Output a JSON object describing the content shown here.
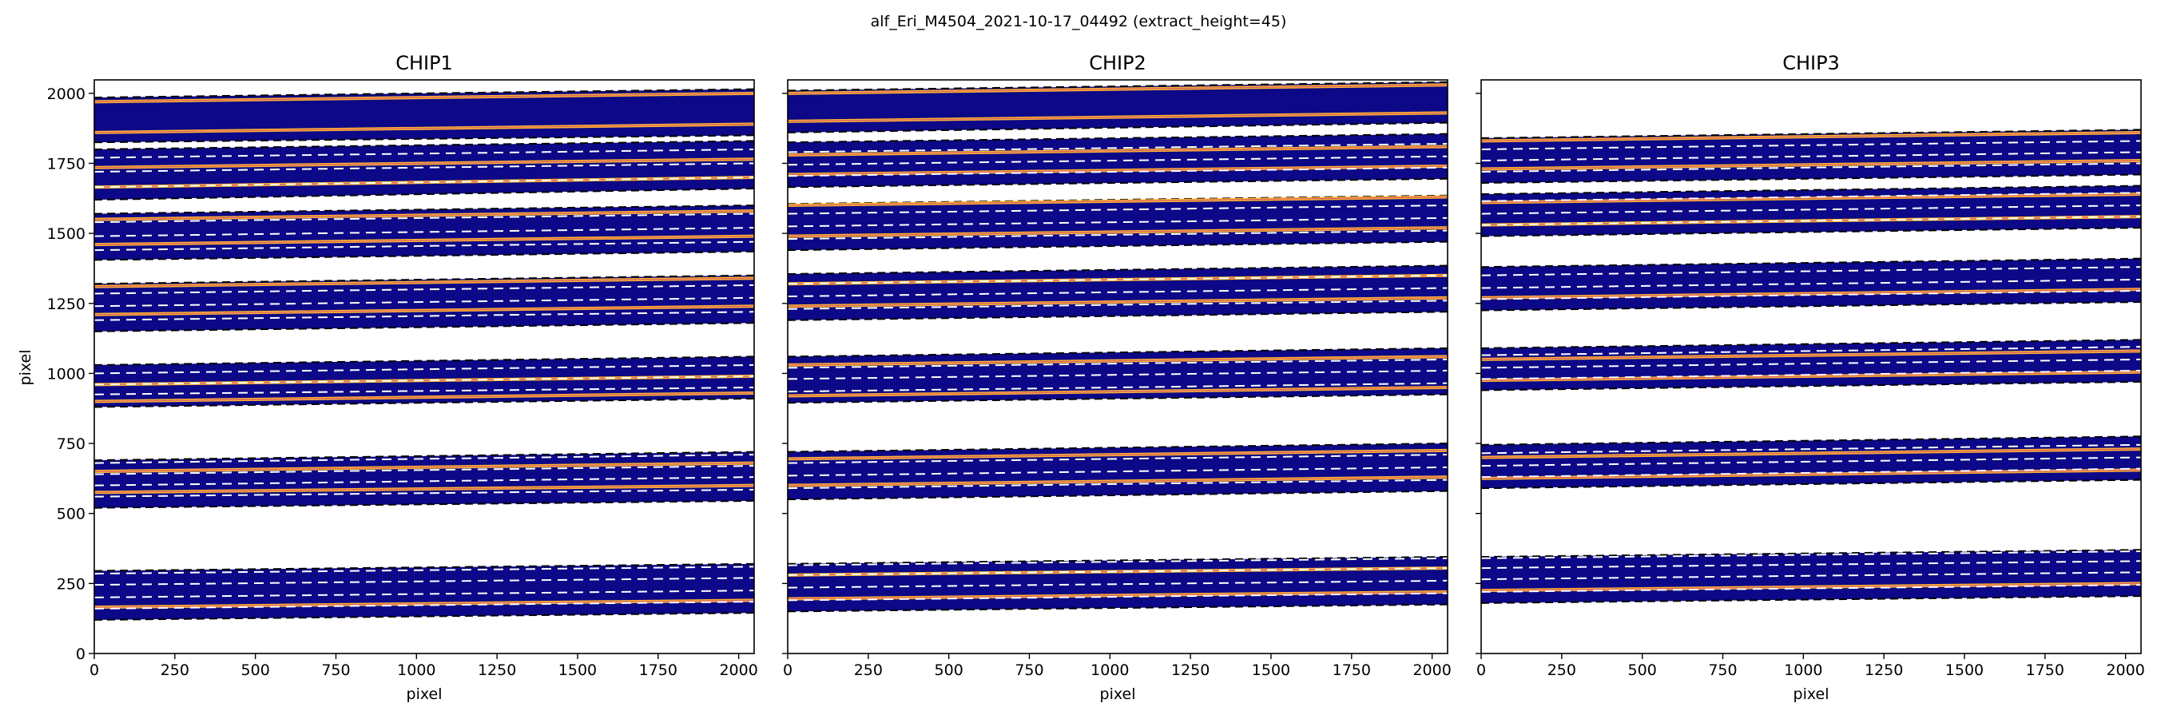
{
  "figure": {
    "suptitle": "alf_Eri_M4504_2021-10-17_04492  (extract_height=45)"
  },
  "colors": {
    "background_trace": "#0d0887",
    "bright_line": "#fdb42f",
    "bright_core": "#cc4778",
    "dashed": "#ffffff",
    "edge": "#000000"
  },
  "chart_data": [
    {
      "type": "heatmap",
      "title": "CHIP1",
      "xlabel": "pixel",
      "ylabel": "pixel",
      "xlim": [
        0,
        2048
      ],
      "ylim": [
        0,
        2048
      ],
      "xticks": [
        0,
        250,
        500,
        750,
        1000,
        1250,
        1500,
        1750,
        2000
      ],
      "yticks": [
        0,
        250,
        500,
        750,
        1000,
        1250,
        1500,
        1750,
        2000
      ],
      "orders": [
        {
          "bottom": [
            120,
            145
          ],
          "top": [
            295,
            320
          ],
          "dashed": [
            [
              160,
              185
            ],
            [
              200,
              225
            ],
            [
              245,
              270
            ],
            [
              285,
              310
            ]
          ],
          "bright": [
            [
              165,
              190
            ]
          ]
        },
        {
          "bottom": [
            520,
            545
          ],
          "top": [
            690,
            720
          ],
          "dashed": [
            [
              560,
              585
            ],
            [
              600,
              630
            ],
            [
              640,
              670
            ],
            [
              680,
              710
            ]
          ],
          "bright": [
            [
              575,
              600
            ],
            [
              650,
              680
            ]
          ]
        },
        {
          "bottom": [
            880,
            910
          ],
          "top": [
            1030,
            1060
          ],
          "dashed": [
            [
              925,
              950
            ],
            [
              960,
              990
            ],
            [
              1000,
              1030
            ]
          ],
          "bright": [
            [
              900,
              930
            ],
            [
              960,
              990
            ]
          ]
        },
        {
          "bottom": [
            1150,
            1180
          ],
          "top": [
            1320,
            1350
          ],
          "dashed": [
            [
              1190,
              1220
            ],
            [
              1240,
              1270
            ],
            [
              1285,
              1315
            ]
          ],
          "bright": [
            [
              1210,
              1240
            ],
            [
              1310,
              1340
            ]
          ]
        },
        {
          "bottom": [
            1405,
            1435
          ],
          "top": [
            1570,
            1600
          ],
          "dashed": [
            [
              1440,
              1470
            ],
            [
              1490,
              1520
            ],
            [
              1540,
              1570
            ]
          ],
          "bright": [
            [
              1460,
              1490
            ],
            [
              1550,
              1580
            ]
          ]
        },
        {
          "bottom": [
            1620,
            1660
          ],
          "top": [
            1800,
            1830
          ],
          "dashed": [
            [
              1665,
              1700
            ],
            [
              1720,
              1750
            ],
            [
              1770,
              1800
            ]
          ],
          "bright": [
            [
              1665,
              1700
            ],
            [
              1735,
              1765
            ]
          ]
        },
        {
          "bottom": [
            1825,
            1850
          ],
          "top": [
            1985,
            2015
          ],
          "dashed": [],
          "bright": [
            [
              1860,
              1890
            ],
            [
              1970,
              2000
            ]
          ]
        }
      ]
    },
    {
      "type": "heatmap",
      "title": "CHIP2",
      "xlabel": "pixel",
      "ylabel": "",
      "xlim": [
        0,
        2048
      ],
      "ylim": [
        0,
        2048
      ],
      "xticks": [
        0,
        250,
        500,
        750,
        1000,
        1250,
        1500,
        1750,
        2000
      ],
      "yticks": [
        0,
        250,
        500,
        750,
        1000,
        1250,
        1500,
        1750,
        2000
      ],
      "orders": [
        {
          "bottom": [
            150,
            175
          ],
          "top": [
            320,
            345
          ],
          "dashed": [
            [
              190,
              215
            ],
            [
              235,
              260
            ],
            [
              280,
              305
            ],
            [
              315,
              340
            ]
          ],
          "bright": [
            [
              195,
              220
            ],
            [
              280,
              305
            ]
          ]
        },
        {
          "bottom": [
            550,
            580
          ],
          "top": [
            720,
            750
          ],
          "dashed": [
            [
              590,
              620
            ],
            [
              635,
              665
            ],
            [
              680,
              710
            ]
          ],
          "bright": [
            [
              600,
              630
            ],
            [
              695,
              725
            ]
          ]
        },
        {
          "bottom": [
            895,
            925
          ],
          "top": [
            1060,
            1090
          ],
          "dashed": [
            [
              935,
              965
            ],
            [
              980,
              1010
            ],
            [
              1020,
              1050
            ]
          ],
          "bright": [
            [
              920,
              950
            ],
            [
              1030,
              1060
            ]
          ]
        },
        {
          "bottom": [
            1190,
            1220
          ],
          "top": [
            1355,
            1385
          ],
          "dashed": [
            [
              1230,
              1260
            ],
            [
              1275,
              1305
            ],
            [
              1320,
              1350
            ]
          ],
          "bright": [
            [
              1240,
              1270
            ],
            [
              1320,
              1350
            ]
          ]
        },
        {
          "bottom": [
            1440,
            1470
          ],
          "top": [
            1605,
            1635
          ],
          "dashed": [
            [
              1480,
              1510
            ],
            [
              1525,
              1555
            ],
            [
              1570,
              1600
            ]
          ],
          "bright": [
            [
              1490,
              1520
            ],
            [
              1600,
              1630
            ]
          ]
        },
        {
          "bottom": [
            1665,
            1695
          ],
          "top": [
            1825,
            1855
          ],
          "dashed": [
            [
              1705,
              1735
            ],
            [
              1745,
              1775
            ],
            [
              1790,
              1820
            ]
          ],
          "bright": [
            [
              1710,
              1740
            ],
            [
              1780,
              1810
            ]
          ]
        },
        {
          "bottom": [
            1860,
            1895
          ],
          "top": [
            2010,
            2040
          ],
          "dashed": [],
          "bright": [
            [
              1900,
              1930
            ],
            [
              2000,
              2030
            ]
          ]
        }
      ]
    },
    {
      "type": "heatmap",
      "title": "CHIP3",
      "xlabel": "pixel",
      "ylabel": "",
      "xlim": [
        0,
        2048
      ],
      "ylim": [
        0,
        2048
      ],
      "xticks": [
        0,
        250,
        500,
        750,
        1000,
        1250,
        1500,
        1750,
        2000
      ],
      "yticks": [
        0,
        250,
        500,
        750,
        1000,
        1250,
        1500,
        1750,
        2000
      ],
      "orders": [
        {
          "bottom": [
            180,
            205
          ],
          "top": [
            345,
            370
          ],
          "dashed": [
            [
              220,
              245
            ],
            [
              265,
              290
            ],
            [
              305,
              330
            ],
            [
              340,
              365
            ]
          ],
          "bright": [
            [
              225,
              250
            ]
          ]
        },
        {
          "bottom": [
            590,
            620
          ],
          "top": [
            745,
            775
          ],
          "dashed": [
            [
              630,
              660
            ],
            [
              670,
              700
            ],
            [
              715,
              745
            ]
          ],
          "bright": [
            [
              625,
              655
            ],
            [
              700,
              730
            ]
          ]
        },
        {
          "bottom": [
            940,
            970
          ],
          "top": [
            1090,
            1120
          ],
          "dashed": [
            [
              980,
              1010
            ],
            [
              1020,
              1050
            ],
            [
              1065,
              1095
            ]
          ],
          "bright": [
            [
              975,
              1005
            ],
            [
              1050,
              1080
            ]
          ]
        },
        {
          "bottom": [
            1225,
            1255
          ],
          "top": [
            1380,
            1410
          ],
          "dashed": [
            [
              1265,
              1295
            ],
            [
              1305,
              1335
            ],
            [
              1350,
              1380
            ]
          ],
          "bright": [
            [
              1270,
              1300
            ]
          ]
        },
        {
          "bottom": [
            1490,
            1520
          ],
          "top": [
            1640,
            1670
          ],
          "dashed": [
            [
              1530,
              1560
            ],
            [
              1570,
              1600
            ],
            [
              1615,
              1645
            ]
          ],
          "bright": [
            [
              1530,
              1560
            ],
            [
              1610,
              1640
            ]
          ]
        },
        {
          "bottom": [
            1680,
            1710
          ],
          "top": [
            1840,
            1870
          ],
          "dashed": [
            [
              1720,
              1750
            ],
            [
              1760,
              1790
            ],
            [
              1800,
              1830
            ]
          ],
          "bright": [
            [
              1730,
              1760
            ],
            [
              1830,
              1860
            ]
          ]
        }
      ]
    }
  ]
}
